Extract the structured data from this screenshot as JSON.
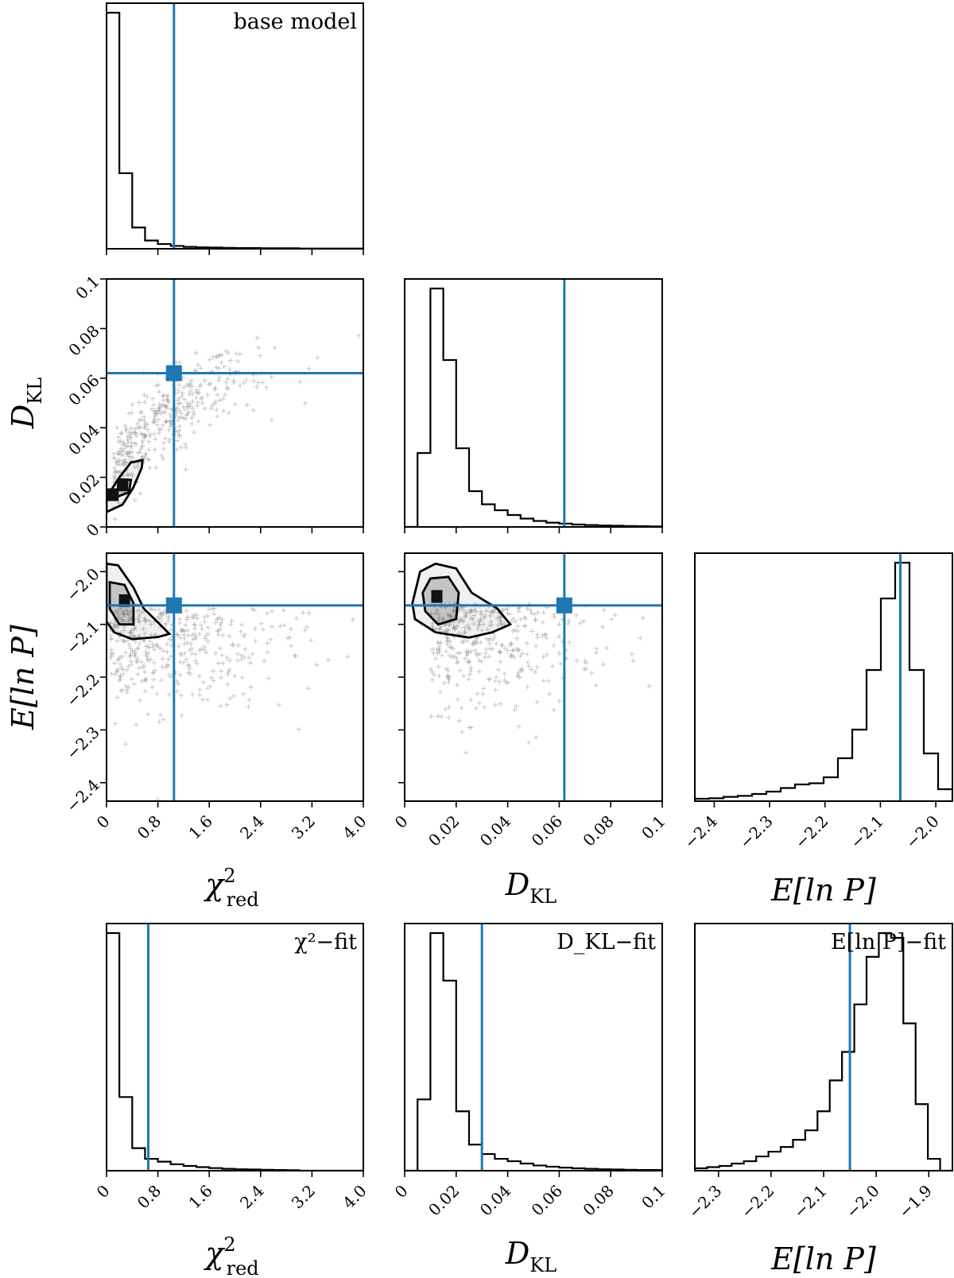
{
  "colors": {
    "accent": "#1f77b4",
    "hist": "#000000",
    "points": "#9a9a9a"
  },
  "panels": [
    {
      "id": "p_chi_hist",
      "box": "r0c0",
      "type": "hist",
      "annotation": "base model",
      "xrange": [
        0,
        4.0
      ],
      "edges_step": 0.2,
      "counts": [
        1.0,
        0.32,
        0.09,
        0.035,
        0.02,
        0.012,
        0.008,
        0.006,
        0.005,
        0.004,
        0.003,
        0.003,
        0.002,
        0.002,
        0.002,
        0.001,
        0.001,
        0.001,
        0.001,
        0.001
      ],
      "vline": 1.05
    },
    {
      "id": "p_dkl_chi",
      "box": "r1c0",
      "type": "scatter",
      "xrange": [
        0,
        4.0
      ],
      "yrange": [
        0,
        0.1
      ],
      "vline": 1.05,
      "hline": 0.062,
      "marker": [
        1.05,
        0.062
      ],
      "contours": [
        [
          [
            0.0,
            0.006
          ],
          [
            0.25,
            0.009
          ],
          [
            0.42,
            0.016
          ],
          [
            0.55,
            0.024
          ],
          [
            0.56,
            0.027
          ],
          [
            0.38,
            0.026
          ],
          [
            0.2,
            0.02
          ],
          [
            0.0,
            0.012
          ]
        ],
        [
          [
            0.15,
            0.012
          ],
          [
            0.35,
            0.014
          ],
          [
            0.38,
            0.019
          ],
          [
            0.2,
            0.019
          ]
        ]
      ],
      "dense": [
        [
          0.25,
          0.017
        ],
        [
          0.1,
          0.013
        ]
      ]
    },
    {
      "id": "p_dkl_hist",
      "box": "r1c1",
      "type": "hist",
      "xrange": [
        0,
        0.1
      ],
      "edges_step": 0.005,
      "counts": [
        0.0,
        0.31,
        1.0,
        0.7,
        0.33,
        0.15,
        0.095,
        0.07,
        0.05,
        0.035,
        0.025,
        0.018,
        0.014,
        0.01,
        0.008,
        0.006,
        0.005,
        0.004,
        0.003,
        0.002
      ],
      "vline": 0.062
    },
    {
      "id": "p_elnp_chi",
      "box": "r2c0",
      "type": "scatter",
      "xrange": [
        0,
        4.0
      ],
      "yrange": [
        -2.435,
        -1.965
      ],
      "vline": 1.05,
      "hline": -2.064,
      "marker": [
        1.05,
        -2.064
      ],
      "contours": [
        [
          [
            0.0,
            -1.985
          ],
          [
            0.18,
            -1.988
          ],
          [
            0.42,
            -2.03
          ],
          [
            0.58,
            -2.07
          ],
          [
            0.75,
            -2.09
          ],
          [
            0.98,
            -2.118
          ],
          [
            0.8,
            -2.124
          ],
          [
            0.4,
            -2.128
          ],
          [
            0.12,
            -2.115
          ],
          [
            0.0,
            -2.095
          ]
        ],
        [
          [
            0.05,
            -2.02
          ],
          [
            0.28,
            -2.025
          ],
          [
            0.42,
            -2.06
          ],
          [
            0.42,
            -2.1
          ],
          [
            0.2,
            -2.1
          ],
          [
            0.05,
            -2.07
          ]
        ]
      ],
      "dense": [
        [
          0.28,
          -2.055
        ]
      ]
    },
    {
      "id": "p_elnp_dkl",
      "box": "r2c1",
      "type": "scatter",
      "xrange": [
        0,
        0.1
      ],
      "yrange": [
        -2.435,
        -1.965
      ],
      "vline": 0.062,
      "hline": -2.064,
      "marker": [
        0.062,
        -2.064
      ],
      "contours": [
        [
          [
            0.003,
            -2.06
          ],
          [
            0.006,
            -2.0
          ],
          [
            0.012,
            -1.985
          ],
          [
            0.02,
            -1.994
          ],
          [
            0.026,
            -2.04
          ],
          [
            0.036,
            -2.07
          ],
          [
            0.041,
            -2.1
          ],
          [
            0.034,
            -2.115
          ],
          [
            0.025,
            -2.125
          ],
          [
            0.012,
            -2.115
          ],
          [
            0.004,
            -2.09
          ]
        ],
        [
          [
            0.007,
            -2.04
          ],
          [
            0.01,
            -2.013
          ],
          [
            0.017,
            -2.01
          ],
          [
            0.021,
            -2.04
          ],
          [
            0.02,
            -2.09
          ],
          [
            0.013,
            -2.1
          ],
          [
            0.008,
            -2.075
          ]
        ]
      ],
      "dense": [
        [
          0.0125,
          -2.047
        ]
      ]
    },
    {
      "id": "p_elnp_hist",
      "box": "r2c2",
      "type": "hist",
      "xrange": [
        -2.435,
        -1.97
      ],
      "edges_step": 0.02333,
      "counts": [
        0.01,
        0.012,
        0.018,
        0.022,
        0.03,
        0.04,
        0.055,
        0.07,
        0.075,
        0.1,
        0.18,
        0.3,
        0.55,
        0.85,
        1.0,
        0.55,
        0.2,
        0.05
      ],
      "vline": -2.064
    },
    {
      "id": "p_chi_fit",
      "box": "r3c0",
      "type": "hist",
      "annotation": "χ²−fit",
      "xrange": [
        0,
        4.0
      ],
      "edges_step": 0.2,
      "counts": [
        1.0,
        0.31,
        0.095,
        0.05,
        0.038,
        0.027,
        0.02,
        0.015,
        0.011,
        0.008,
        0.006,
        0.005,
        0.004,
        0.003,
        0.002,
        0.0,
        0.0,
        0.0,
        0.0,
        0.0
      ],
      "vline": 0.65
    },
    {
      "id": "p_dkl_fit",
      "box": "r3c1",
      "type": "hist",
      "annotation": "D_KL−fit",
      "xrange": [
        0,
        0.1
      ],
      "edges_step": 0.005,
      "counts": [
        0.0,
        0.3,
        1.0,
        0.8,
        0.25,
        0.11,
        0.07,
        0.05,
        0.04,
        0.03,
        0.022,
        0.017,
        0.013,
        0.01,
        0.008,
        0.006,
        0.005,
        0.004,
        0.003,
        0.003
      ],
      "vline": 0.03
    },
    {
      "id": "p_elnp_fit",
      "box": "r3c2",
      "type": "hist",
      "annotation": "E[ln P]−fit",
      "xrange": [
        -2.345,
        -1.855
      ],
      "edges_step": 0.0233,
      "counts": [
        0.01,
        0.015,
        0.02,
        0.03,
        0.04,
        0.06,
        0.08,
        0.1,
        0.13,
        0.17,
        0.25,
        0.38,
        0.5,
        0.7,
        0.9,
        1.0,
        0.98,
        0.62,
        0.28,
        0.05,
        0.0
      ],
      "vline": -2.05
    }
  ],
  "ticks": {
    "chi": {
      "labels": [
        "0",
        "0.8",
        "1.6",
        "2.4",
        "3.2",
        "4.0"
      ],
      "values": [
        0,
        0.8,
        1.6,
        2.4,
        3.2,
        4.0
      ]
    },
    "dkl_x": {
      "labels": [
        "0",
        "0.02",
        "0.04",
        "0.06",
        "0.08",
        "0.1"
      ],
      "values": [
        0,
        0.02,
        0.04,
        0.06,
        0.08,
        0.1
      ]
    },
    "dkl_y": {
      "labels": [
        "0",
        "0.02",
        "0.04",
        "0.06",
        "0.08",
        "0.1"
      ],
      "values": [
        0,
        0.02,
        0.04,
        0.06,
        0.08,
        0.1
      ]
    },
    "elnp_y": {
      "labels": [
        "−2.0",
        "−2.1",
        "−2.2",
        "−2.3",
        "−2.4"
      ],
      "values": [
        -2.0,
        -2.1,
        -2.2,
        -2.3,
        -2.4
      ]
    },
    "elnp_x": {
      "labels": [
        "−2.4",
        "−2.3",
        "−2.2",
        "−2.1",
        "−2.0"
      ],
      "values": [
        -2.4,
        -2.3,
        -2.2,
        -2.1,
        -2.0
      ]
    },
    "elnp_fit_x": {
      "labels": [
        "−2.3",
        "−2.2",
        "−2.1",
        "−2.0",
        "−1.9"
      ],
      "values": [
        -2.3,
        -2.2,
        -2.1,
        -2.0,
        -1.9
      ]
    }
  },
  "labels": {
    "ylabel_dkl": {
      "main": "D",
      "sub": "KL"
    },
    "ylabel_elnp": "E[ln P]",
    "xlabel_chi": {
      "main": "χ",
      "sup": "2",
      "sub": "red"
    },
    "xlabel_dkl": {
      "main": "D",
      "sub": "KL"
    },
    "xlabel_elnp": "E[ln P]"
  },
  "chart_data": {
    "type": "corner",
    "parameters": [
      "χ²_red",
      "D_KL",
      "E[ln P]"
    ],
    "reference_values": {
      "χ²_red": 1.05,
      "D_KL": 0.062,
      "E[ln P]": -2.064
    },
    "fit_reference_values": {
      "χ²−fit": 0.65,
      "D_KL−fit": 0.03,
      "E[ln P]−fit": -2.05
    },
    "axes": {
      "χ²_red": {
        "range": [
          0,
          4.0
        ]
      },
      "D_KL": {
        "range": [
          0,
          0.1
        ]
      },
      "E[ln P]": {
        "range": [
          -2.44,
          -1.97
        ]
      }
    }
  }
}
